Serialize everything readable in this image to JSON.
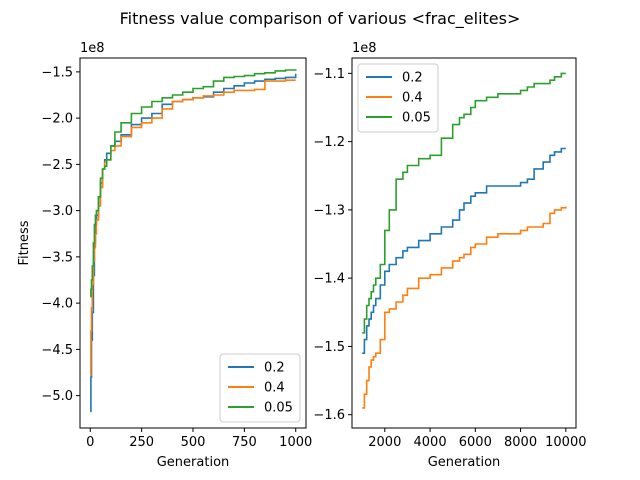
{
  "figure": {
    "title": "Fitness value comparison of various <frac_elites>"
  },
  "chart_data": [
    {
      "type": "line",
      "xlabel": "Generation",
      "ylabel": "Fitness",
      "offset_text": "1e8",
      "xlim": [
        -50,
        1050
      ],
      "ylim": [
        -5.35,
        -1.35
      ],
      "xticks": [
        0,
        250,
        500,
        750,
        1000
      ],
      "xtick_labels": [
        "0",
        "250",
        "500",
        "750",
        "1000"
      ],
      "yticks": [
        -5.0,
        -4.5,
        -4.0,
        -3.5,
        -3.0,
        -2.5,
        -2.0,
        -1.5
      ],
      "ytick_labels": [
        "−5.0",
        "−4.5",
        "−4.0",
        "−3.5",
        "−3.0",
        "−2.5",
        "−2.0",
        "−1.5"
      ],
      "legend_position": "lower-right",
      "series": [
        {
          "name": "0.2",
          "color": "#1f77b4",
          "x": [
            0,
            3,
            6,
            10,
            15,
            20,
            25,
            30,
            40,
            50,
            60,
            70,
            80,
            100,
            120,
            150,
            200,
            250,
            300,
            350,
            400,
            450,
            500,
            550,
            600,
            650,
            700,
            750,
            800,
            850,
            900,
            950,
            1000
          ],
          "y": [
            -5.17,
            -4.8,
            -4.4,
            -4.1,
            -3.7,
            -3.35,
            -3.15,
            -3.05,
            -2.85,
            -2.7,
            -2.55,
            -2.45,
            -2.38,
            -2.3,
            -2.25,
            -2.18,
            -2.07,
            -2.0,
            -1.95,
            -1.85,
            -1.82,
            -1.8,
            -1.78,
            -1.77,
            -1.72,
            -1.68,
            -1.65,
            -1.62,
            -1.6,
            -1.58,
            -1.57,
            -1.56,
            -1.52
          ]
        },
        {
          "name": "0.4",
          "color": "#ff7f0e",
          "x": [
            0,
            3,
            6,
            10,
            15,
            20,
            25,
            30,
            40,
            50,
            60,
            70,
            80,
            100,
            120,
            150,
            200,
            250,
            300,
            350,
            400,
            450,
            500,
            550,
            600,
            650,
            700,
            750,
            800,
            850,
            900,
            950,
            1000
          ],
          "y": [
            -4.78,
            -4.3,
            -4.05,
            -3.8,
            -3.55,
            -3.4,
            -3.25,
            -3.1,
            -2.95,
            -2.75,
            -2.55,
            -2.48,
            -2.45,
            -2.35,
            -2.3,
            -2.2,
            -2.1,
            -2.05,
            -2.0,
            -1.9,
            -1.82,
            -1.8,
            -1.78,
            -1.76,
            -1.75,
            -1.72,
            -1.7,
            -1.7,
            -1.69,
            -1.6,
            -1.6,
            -1.59,
            -1.59
          ]
        },
        {
          "name": "0.05",
          "color": "#2ca02c",
          "x": [
            0,
            3,
            6,
            10,
            15,
            20,
            25,
            30,
            40,
            50,
            60,
            70,
            80,
            100,
            120,
            150,
            200,
            250,
            300,
            350,
            400,
            450,
            500,
            550,
            600,
            650,
            700,
            750,
            800,
            850,
            900,
            950,
            1000
          ],
          "y": [
            -3.93,
            -3.85,
            -3.75,
            -3.6,
            -3.35,
            -3.15,
            -3.05,
            -3.0,
            -2.85,
            -2.65,
            -2.55,
            -2.52,
            -2.45,
            -2.3,
            -2.15,
            -2.05,
            -1.95,
            -1.88,
            -1.82,
            -1.78,
            -1.75,
            -1.72,
            -1.68,
            -1.66,
            -1.6,
            -1.56,
            -1.55,
            -1.54,
            -1.52,
            -1.51,
            -1.49,
            -1.48,
            -1.47
          ]
        }
      ]
    },
    {
      "type": "line",
      "xlabel": "Generation",
      "ylabel": "",
      "offset_text": "1e8",
      "xlim": [
        550,
        10450
      ],
      "ylim": [
        -1.6195,
        -1.0775
      ],
      "xticks": [
        2000,
        4000,
        6000,
        8000,
        10000
      ],
      "xtick_labels": [
        "2000",
        "4000",
        "6000",
        "8000",
        "10000"
      ],
      "yticks": [
        -1.6,
        -1.5,
        -1.4,
        -1.3,
        -1.2,
        -1.1
      ],
      "ytick_labels": [
        "−1.6",
        "−1.5",
        "−1.4",
        "−1.3",
        "−1.2",
        "−1.1"
      ],
      "legend_position": "upper-left",
      "series": [
        {
          "name": "0.2",
          "color": "#1f77b4",
          "x": [
            1000,
            1100,
            1200,
            1300,
            1400,
            1500,
            1600,
            1800,
            2000,
            2200,
            2500,
            2800,
            3000,
            3500,
            4000,
            4500,
            5000,
            5300,
            5500,
            5800,
            6000,
            6500,
            7000,
            7500,
            8000,
            8300,
            8600,
            9000,
            9300,
            9500,
            9800,
            10000
          ],
          "y": [
            -1.51,
            -1.49,
            -1.47,
            -1.46,
            -1.45,
            -1.44,
            -1.43,
            -1.41,
            -1.39,
            -1.38,
            -1.37,
            -1.36,
            -1.355,
            -1.345,
            -1.335,
            -1.325,
            -1.315,
            -1.3,
            -1.29,
            -1.28,
            -1.275,
            -1.265,
            -1.265,
            -1.265,
            -1.26,
            -1.255,
            -1.24,
            -1.23,
            -1.22,
            -1.215,
            -1.21,
            -1.21
          ]
        },
        {
          "name": "0.4",
          "color": "#ff7f0e",
          "x": [
            1000,
            1100,
            1200,
            1300,
            1400,
            1500,
            1600,
            1800,
            2000,
            2200,
            2500,
            2800,
            3000,
            3500,
            4000,
            4500,
            5000,
            5300,
            5500,
            5800,
            6000,
            6500,
            7000,
            7500,
            8000,
            8300,
            8600,
            9000,
            9300,
            9500,
            9800,
            10000
          ],
          "y": [
            -1.59,
            -1.57,
            -1.55,
            -1.53,
            -1.52,
            -1.515,
            -1.51,
            -1.49,
            -1.45,
            -1.445,
            -1.435,
            -1.425,
            -1.415,
            -1.4,
            -1.395,
            -1.385,
            -1.375,
            -1.37,
            -1.365,
            -1.355,
            -1.35,
            -1.34,
            -1.335,
            -1.335,
            -1.33,
            -1.325,
            -1.325,
            -1.32,
            -1.305,
            -1.3,
            -1.297,
            -1.295
          ]
        },
        {
          "name": "0.05",
          "color": "#2ca02c",
          "x": [
            1000,
            1100,
            1200,
            1300,
            1400,
            1500,
            1600,
            1800,
            2000,
            2200,
            2500,
            2800,
            3000,
            3500,
            4000,
            4500,
            5000,
            5300,
            5500,
            5800,
            6000,
            6500,
            7000,
            7500,
            8000,
            8300,
            8600,
            9000,
            9300,
            9500,
            9800,
            10000
          ],
          "y": [
            -1.48,
            -1.46,
            -1.44,
            -1.43,
            -1.42,
            -1.41,
            -1.4,
            -1.38,
            -1.33,
            -1.3,
            -1.255,
            -1.245,
            -1.235,
            -1.225,
            -1.22,
            -1.195,
            -1.175,
            -1.165,
            -1.16,
            -1.15,
            -1.14,
            -1.135,
            -1.13,
            -1.13,
            -1.125,
            -1.12,
            -1.115,
            -1.115,
            -1.11,
            -1.105,
            -1.1,
            -1.1
          ]
        }
      ]
    }
  ]
}
